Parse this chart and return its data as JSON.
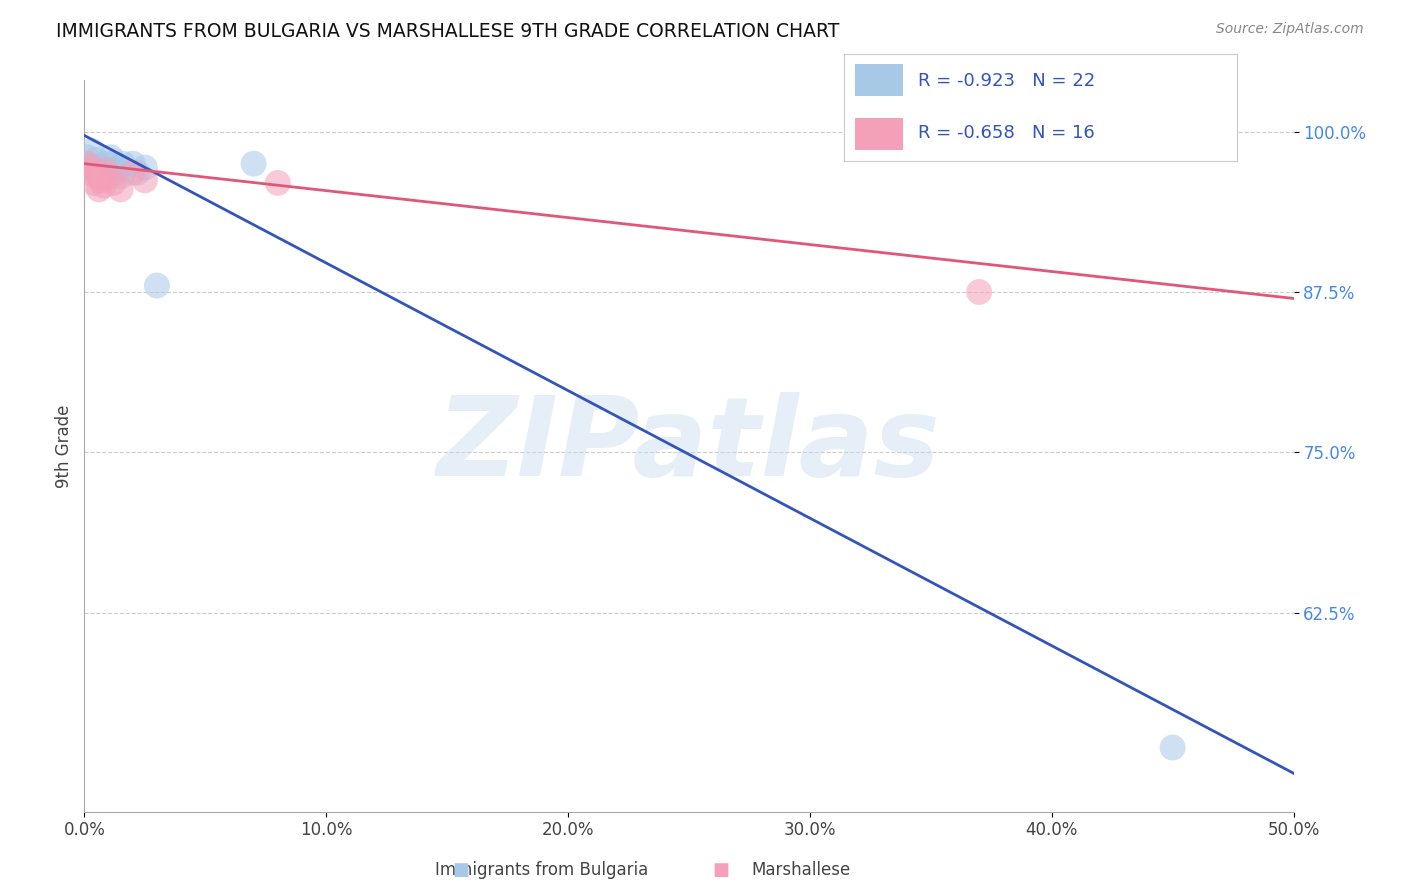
{
  "title": "IMMIGRANTS FROM BULGARIA VS MARSHALLESE 9TH GRADE CORRELATION CHART",
  "source_text": "Source: ZipAtlas.com",
  "ylabel": "9th Grade",
  "xlim": [
    0.0,
    0.5
  ],
  "ylim": [
    0.47,
    1.04
  ],
  "xticks": [
    0.0,
    0.1,
    0.2,
    0.3,
    0.4,
    0.5
  ],
  "xticklabels": [
    "0.0%",
    "10.0%",
    "20.0%",
    "30.0%",
    "40.0%",
    "50.0%"
  ],
  "yticks": [
    0.625,
    0.75,
    0.875,
    1.0
  ],
  "yticklabels": [
    "62.5%",
    "75.0%",
    "87.5%",
    "100.0%"
  ],
  "bulgaria_R": -0.923,
  "bulgaria_N": 22,
  "marshallese_R": -0.658,
  "marshallese_N": 16,
  "bulgaria_color": "#A8C8E8",
  "marshallese_color": "#F4A0B8",
  "bulgaria_line_color": "#3355BB",
  "marshallese_line_color": "#E05878",
  "watermark": "ZIPatlas",
  "legend_labels": [
    "Immigrants from Bulgaria",
    "Marshallese"
  ],
  "bulgaria_x": [
    0.001,
    0.002,
    0.003,
    0.004,
    0.005,
    0.006,
    0.007,
    0.008,
    0.009,
    0.01,
    0.011,
    0.012,
    0.013,
    0.014,
    0.015,
    0.016,
    0.02,
    0.022,
    0.025,
    0.03,
    0.07,
    0.45
  ],
  "bulgaria_y": [
    0.98,
    0.975,
    0.985,
    0.97,
    0.978,
    0.965,
    0.972,
    0.968,
    0.975,
    0.97,
    0.98,
    0.975,
    0.968,
    0.972,
    0.965,
    0.975,
    0.975,
    0.968,
    0.972,
    0.88,
    0.975,
    0.52
  ],
  "marshallese_x": [
    0.001,
    0.002,
    0.003,
    0.004,
    0.005,
    0.006,
    0.007,
    0.008,
    0.009,
    0.01,
    0.012,
    0.015,
    0.02,
    0.025,
    0.08,
    0.37
  ],
  "marshallese_y": [
    0.975,
    0.968,
    0.972,
    0.96,
    0.965,
    0.955,
    0.962,
    0.958,
    0.97,
    0.965,
    0.96,
    0.955,
    0.968,
    0.962,
    0.96,
    0.875
  ],
  "blue_line_x0": 0.0,
  "blue_line_y0": 0.997,
  "blue_line_x1": 0.5,
  "blue_line_y1": 0.5,
  "pink_line_x0": 0.0,
  "pink_line_y0": 0.975,
  "pink_line_x1": 0.5,
  "pink_line_y1": 0.87
}
